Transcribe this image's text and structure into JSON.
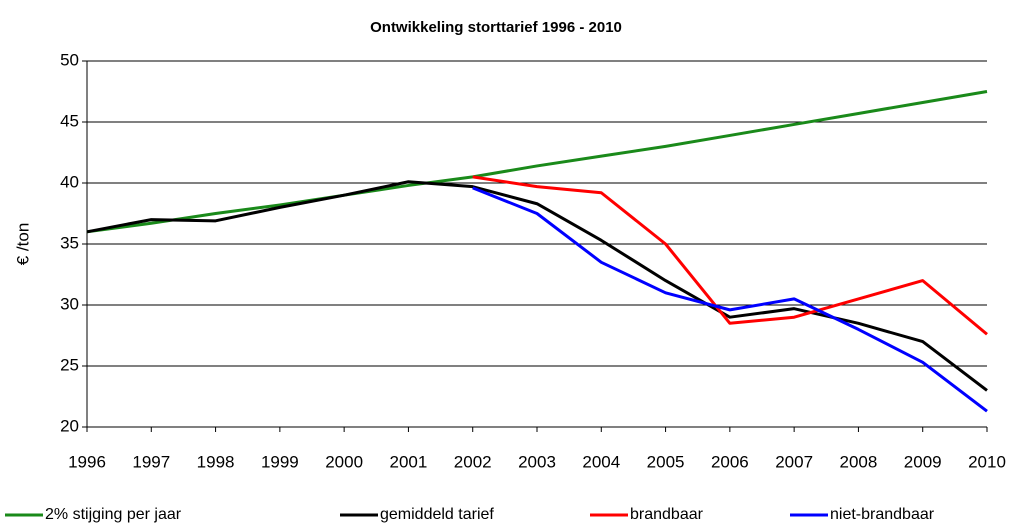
{
  "chart_data": {
    "type": "line",
    "title": "Ontwikkeling storttarief 1996 - 2010",
    "y_label": "€  /ton",
    "categories": [
      "1996",
      "1997",
      "1998",
      "1999",
      "2000",
      "2001",
      "2002",
      "2003",
      "2004",
      "2005",
      "2006",
      "2007",
      "2008",
      "2009",
      "2010"
    ],
    "ylim": [
      20,
      50
    ],
    "yticks": [
      20,
      25,
      30,
      35,
      40,
      45,
      50
    ],
    "grid": true,
    "legend": "bottom",
    "series": [
      {
        "name": "2% stijging per jaar",
        "color": "#1a8a1a",
        "values": [
          36,
          36.7,
          37.5,
          38.2,
          39,
          39.8,
          40.5,
          41.4,
          42.2,
          43,
          43.9,
          44.8,
          45.7,
          46.6,
          47.5
        ]
      },
      {
        "name": "gemiddeld tarief",
        "color": "#000000",
        "values": [
          36,
          37,
          36.9,
          38,
          39,
          40.1,
          39.7,
          38.3,
          35.3,
          32,
          29,
          29.7,
          28.5,
          27,
          23
        ]
      },
      {
        "name": "brandbaar",
        "color": "#ff0000",
        "values": [
          null,
          null,
          null,
          null,
          null,
          null,
          40.5,
          39.7,
          39.2,
          35,
          28.5,
          29,
          30.5,
          32,
          27.6
        ]
      },
      {
        "name": "niet-brandbaar",
        "color": "#0000ff",
        "values": [
          null,
          null,
          null,
          null,
          null,
          null,
          39.6,
          37.5,
          33.5,
          31,
          29.6,
          30.5,
          28,
          25.3,
          21.3
        ]
      }
    ]
  }
}
